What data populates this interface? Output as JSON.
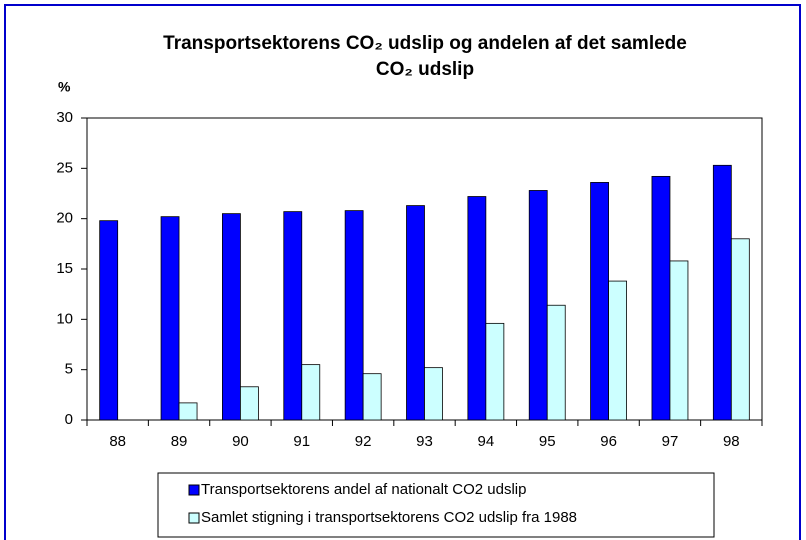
{
  "chart_data": {
    "type": "bar",
    "title": [
      "Transportsektorens CO₂ udslip og andelen af det samlede",
      "CO₂ udslip"
    ],
    "ylabel": "%",
    "categories": [
      "88",
      "89",
      "90",
      "91",
      "92",
      "93",
      "94",
      "95",
      "96",
      "97",
      "98"
    ],
    "series": [
      {
        "name": "Transportsektorens andel af nationalt CO2 udslip",
        "color": "#0000ff",
        "values": [
          19.8,
          20.2,
          20.5,
          20.7,
          20.8,
          21.3,
          22.2,
          22.8,
          23.6,
          24.2,
          25.3
        ]
      },
      {
        "name": "Samlet stigning i transportsektorens CO2 udslip fra 1988",
        "color": "#ccffff",
        "values": [
          0,
          1.7,
          3.3,
          5.5,
          4.6,
          5.2,
          9.6,
          11.4,
          13.8,
          15.8,
          18.0
        ]
      }
    ],
    "ylim": [
      0,
      30
    ],
    "yticks": [
      0,
      5,
      10,
      15,
      20,
      25,
      30
    ],
    "grid": false,
    "legend": "bottom"
  }
}
